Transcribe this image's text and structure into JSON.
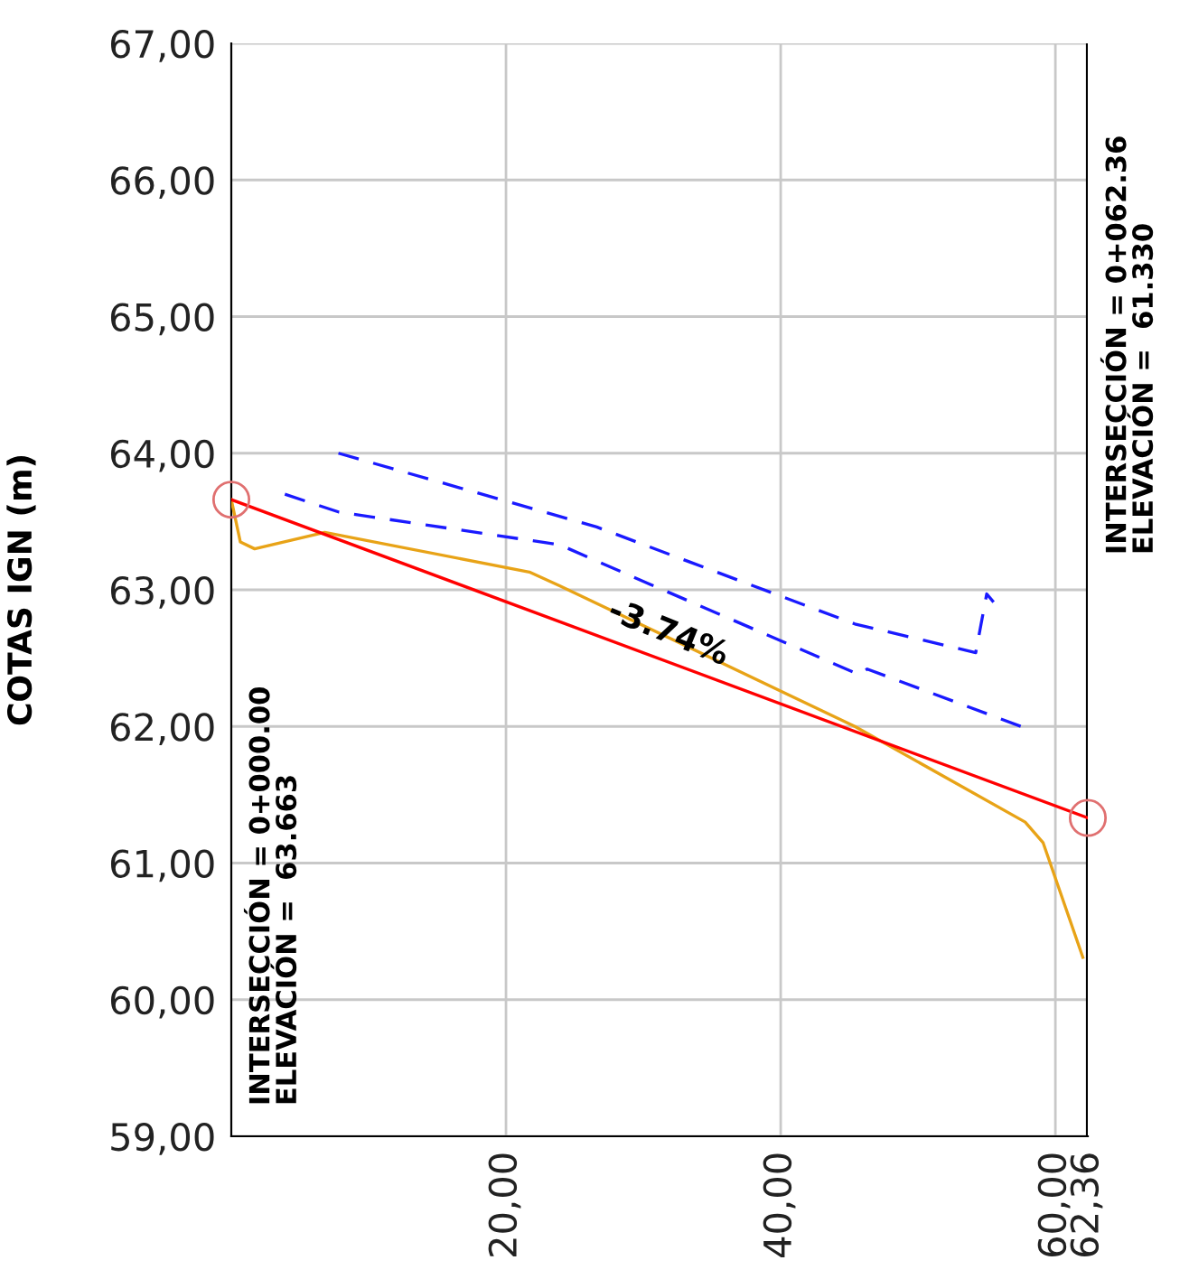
{
  "chart_data": {
    "type": "line",
    "ylabel": "COTAS IGN (m)",
    "xlim": [
      0,
      62.36
    ],
    "ylim": [
      59,
      67
    ],
    "xticks": [
      {
        "value": 20,
        "label": "20,00"
      },
      {
        "value": 40,
        "label": "40,00"
      },
      {
        "value": 60,
        "label": "60,00"
      },
      {
        "value": 62.36,
        "label": "62,36"
      }
    ],
    "yticks": [
      {
        "value": 59,
        "label": "59,00"
      },
      {
        "value": 60,
        "label": "60,00"
      },
      {
        "value": 61,
        "label": "61,00"
      },
      {
        "value": 62,
        "label": "62,00"
      },
      {
        "value": 63,
        "label": "63,00"
      },
      {
        "value": 64,
        "label": "64,00"
      },
      {
        "value": 65,
        "label": "65,00"
      },
      {
        "value": 66,
        "label": "66,00"
      },
      {
        "value": 67,
        "label": "67,00"
      }
    ],
    "grid": true,
    "legend": false,
    "series": [
      {
        "color": "#e8a317",
        "line_style": "solid",
        "marker": "none",
        "x": [
          0,
          0.66,
          1.7,
          6.8,
          21.7,
          23.9,
          45.4,
          57.8,
          59.1,
          62.0
        ],
        "values": [
          63.66,
          63.35,
          63.3,
          63.42,
          63.13,
          63.03,
          62.0,
          61.3,
          61.15,
          60.31
        ]
      },
      {
        "color": "#1a1aff",
        "line_style": "dashed",
        "marker": "none",
        "x": [
          7.8,
          26.6,
          45.4,
          54.2,
          55.0,
          55.5
        ],
        "values": [
          64.0,
          63.46,
          62.75,
          62.54,
          62.97,
          62.91
        ]
      },
      {
        "color": "#1a1aff",
        "line_style": "dashed",
        "marker": "none",
        "x": [
          3.9,
          7.8,
          23.9,
          30.5,
          45.7,
          46.3,
          57.5
        ],
        "values": [
          63.7,
          63.57,
          63.33,
          63.04,
          62.38,
          62.42,
          62.0
        ]
      },
      {
        "color": "#ff0000",
        "line_style": "solid",
        "marker": "none",
        "x": [
          0,
          62.36
        ],
        "values": [
          63.66,
          61.33
        ]
      },
      {
        "type": "scatter",
        "color": "#e07070",
        "marker": "circle",
        "x": [
          0,
          62.36
        ],
        "values": [
          63.66,
          61.33
        ]
      }
    ],
    "ref_lines": [
      {
        "axis": "x",
        "value": 62.36,
        "color": "#000000"
      }
    ],
    "annotations": [
      "-3.74%",
      "INTERSECCIÓN = 0+000.00\nELEVACIÓN =  63.663",
      "INTERSECCIÓN = 0+062.36\nELEVACIÓN =  61.330"
    ]
  }
}
